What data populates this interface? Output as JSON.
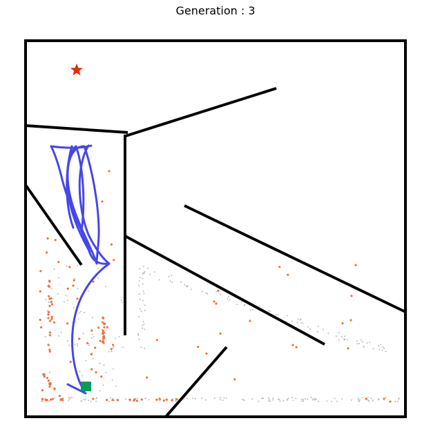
{
  "title": "Generation : 3",
  "colors": {
    "wall": "#000000",
    "goal": "#e0300b",
    "start": "#0a9a5c",
    "trajectory": "#4646ea",
    "highlight_points": "#f07040",
    "faint_points": "#b8b8c4"
  },
  "icons": {
    "goal": "star-icon",
    "start": "square-icon"
  }
}
